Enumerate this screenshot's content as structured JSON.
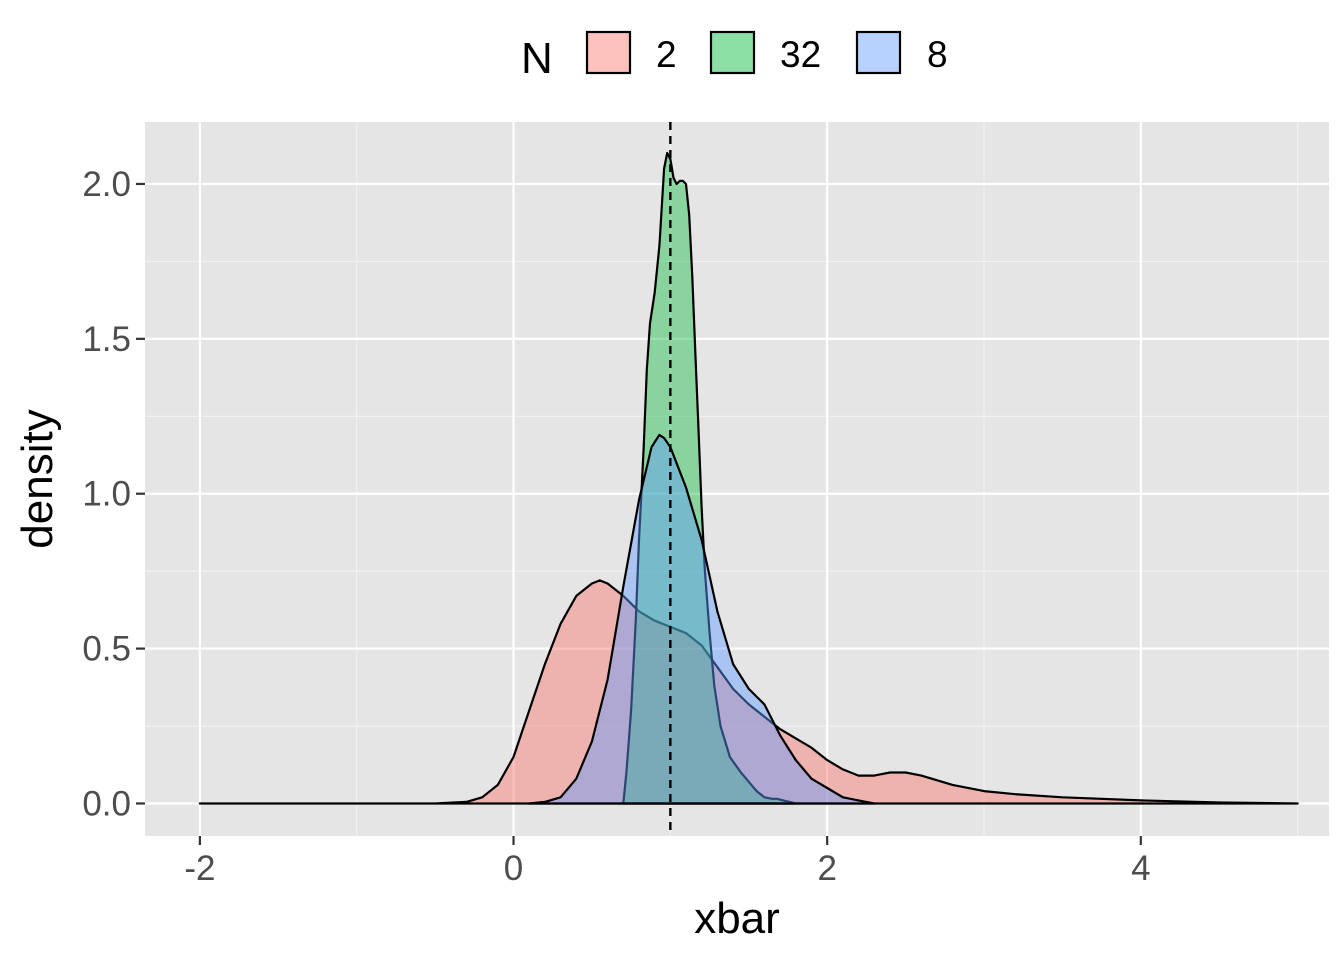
{
  "chart_data": {
    "type": "area",
    "title": "",
    "xlabel": "xbar",
    "ylabel": "density",
    "xlim": [
      -2.35,
      5.2
    ],
    "ylim": [
      -0.105,
      2.2
    ],
    "x_ticks": [
      -2,
      0,
      2,
      4
    ],
    "y_ticks": [
      0.0,
      0.5,
      1.0,
      1.5,
      2.0
    ],
    "x_tick_labels": [
      "-2",
      "0",
      "2",
      "4"
    ],
    "y_tick_labels": [
      "0.0",
      "0.5",
      "1.0",
      "1.5",
      "2.0"
    ],
    "grid": true,
    "panel_background": "#e5e5e5",
    "reference_line": {
      "x": 1.0,
      "style": "dashed",
      "color": "#000000"
    },
    "legend": {
      "title": "N",
      "position": "top",
      "entries": [
        {
          "label": "2",
          "color": "#f8766d"
        },
        {
          "label": "32",
          "color": "#00ba38"
        },
        {
          "label": "8",
          "color": "#619cff"
        }
      ]
    },
    "series": [
      {
        "name": "2",
        "color": "#f8766d",
        "fill_opacity": 0.45,
        "points": [
          [
            -2.0,
            0.0
          ],
          [
            -1.0,
            0.0
          ],
          [
            -0.5,
            0.0
          ],
          [
            -0.3,
            0.005
          ],
          [
            -0.2,
            0.02
          ],
          [
            -0.1,
            0.06
          ],
          [
            0.0,
            0.15
          ],
          [
            0.1,
            0.3
          ],
          [
            0.2,
            0.45
          ],
          [
            0.3,
            0.58
          ],
          [
            0.4,
            0.67
          ],
          [
            0.5,
            0.71
          ],
          [
            0.55,
            0.72
          ],
          [
            0.6,
            0.71
          ],
          [
            0.7,
            0.67
          ],
          [
            0.8,
            0.62
          ],
          [
            0.9,
            0.59
          ],
          [
            1.0,
            0.57
          ],
          [
            1.1,
            0.55
          ],
          [
            1.2,
            0.51
          ],
          [
            1.3,
            0.44
          ],
          [
            1.4,
            0.37
          ],
          [
            1.5,
            0.32
          ],
          [
            1.6,
            0.28
          ],
          [
            1.7,
            0.24
          ],
          [
            1.8,
            0.21
          ],
          [
            1.9,
            0.18
          ],
          [
            2.0,
            0.14
          ],
          [
            2.1,
            0.11
          ],
          [
            2.2,
            0.09
          ],
          [
            2.3,
            0.09
          ],
          [
            2.4,
            0.1
          ],
          [
            2.5,
            0.1
          ],
          [
            2.6,
            0.09
          ],
          [
            2.8,
            0.06
          ],
          [
            3.0,
            0.04
          ],
          [
            3.2,
            0.03
          ],
          [
            3.5,
            0.02
          ],
          [
            4.0,
            0.01
          ],
          [
            4.5,
            0.003
          ],
          [
            5.0,
            0.0
          ]
        ]
      },
      {
        "name": "32",
        "color": "#00ba38",
        "fill_opacity": 0.4,
        "points": [
          [
            0.7,
            0.0
          ],
          [
            0.72,
            0.1
          ],
          [
            0.75,
            0.3
          ],
          [
            0.78,
            0.6
          ],
          [
            0.8,
            0.85
          ],
          [
            0.83,
            1.15
          ],
          [
            0.85,
            1.4
          ],
          [
            0.87,
            1.55
          ],
          [
            0.9,
            1.65
          ],
          [
            0.93,
            1.8
          ],
          [
            0.96,
            2.05
          ],
          [
            0.98,
            2.1
          ],
          [
            1.0,
            2.08
          ],
          [
            1.02,
            2.02
          ],
          [
            1.04,
            2.0
          ],
          [
            1.06,
            2.01
          ],
          [
            1.08,
            2.01
          ],
          [
            1.1,
            2.0
          ],
          [
            1.12,
            1.9
          ],
          [
            1.14,
            1.7
          ],
          [
            1.16,
            1.45
          ],
          [
            1.18,
            1.2
          ],
          [
            1.2,
            0.95
          ],
          [
            1.22,
            0.75
          ],
          [
            1.25,
            0.55
          ],
          [
            1.28,
            0.38
          ],
          [
            1.32,
            0.25
          ],
          [
            1.38,
            0.15
          ],
          [
            1.45,
            0.1
          ],
          [
            1.5,
            0.07
          ],
          [
            1.55,
            0.04
          ],
          [
            1.6,
            0.02
          ],
          [
            1.65,
            0.015
          ],
          [
            1.68,
            0.015
          ],
          [
            1.72,
            0.01
          ],
          [
            1.8,
            0.0
          ]
        ]
      },
      {
        "name": "8",
        "color": "#619cff",
        "fill_opacity": 0.45,
        "points": [
          [
            0.1,
            0.0
          ],
          [
            0.2,
            0.005
          ],
          [
            0.3,
            0.02
          ],
          [
            0.4,
            0.08
          ],
          [
            0.5,
            0.2
          ],
          [
            0.6,
            0.4
          ],
          [
            0.7,
            0.7
          ],
          [
            0.8,
            0.98
          ],
          [
            0.88,
            1.15
          ],
          [
            0.93,
            1.19
          ],
          [
            0.96,
            1.18
          ],
          [
            1.0,
            1.15
          ],
          [
            1.1,
            1.02
          ],
          [
            1.2,
            0.85
          ],
          [
            1.3,
            0.62
          ],
          [
            1.4,
            0.45
          ],
          [
            1.5,
            0.37
          ],
          [
            1.6,
            0.32
          ],
          [
            1.7,
            0.22
          ],
          [
            1.8,
            0.14
          ],
          [
            1.9,
            0.08
          ],
          [
            2.0,
            0.05
          ],
          [
            2.1,
            0.02
          ],
          [
            2.2,
            0.01
          ],
          [
            2.3,
            0.0
          ]
        ]
      }
    ]
  }
}
